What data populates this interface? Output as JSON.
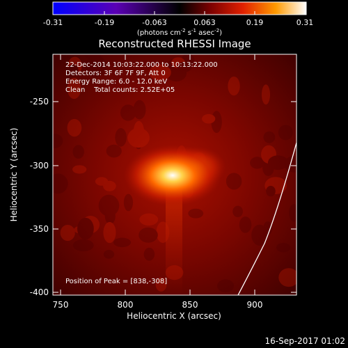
{
  "colorbar": {
    "tick_labels": [
      "-0.31",
      "-0.19",
      "-0.063",
      "0.063",
      "0.19",
      "0.31"
    ],
    "unit_prefix": "(photons cm",
    "unit_exp1": "-2",
    "unit_mid": " s",
    "unit_exp2": "-1",
    "unit_mid2": " asec",
    "unit_exp3": "-2",
    "unit_suffix": ")",
    "colors": [
      "#0000ff",
      "#5a00b4",
      "#000000",
      "#7a0000",
      "#e02000",
      "#ff9a00",
      "#ffffff"
    ]
  },
  "plot": {
    "title": "Reconstructed RHESSI Image",
    "xlabel": "Heliocentric X (arcsec)",
    "ylabel": "Heliocentric Y (arcsec)",
    "x_ticks": [
      "750",
      "800",
      "850",
      "900"
    ],
    "y_ticks": [
      "-250",
      "-300",
      "-350",
      "-400"
    ]
  },
  "annotations": {
    "time_range": "22-Dec-2014 10:03:22.000 to 10:13:22.000",
    "detectors": "Detectors: 3F 6F 7F 9F, Att 0",
    "energy": "Energy Range: 6.0 - 12.0 keV",
    "clean": "Clean    Total counts: 2.52E+05",
    "peak": "Position of Peak = [838,-308]"
  },
  "footer": {
    "timestamp": "16-Sep-2017 01:02"
  }
}
